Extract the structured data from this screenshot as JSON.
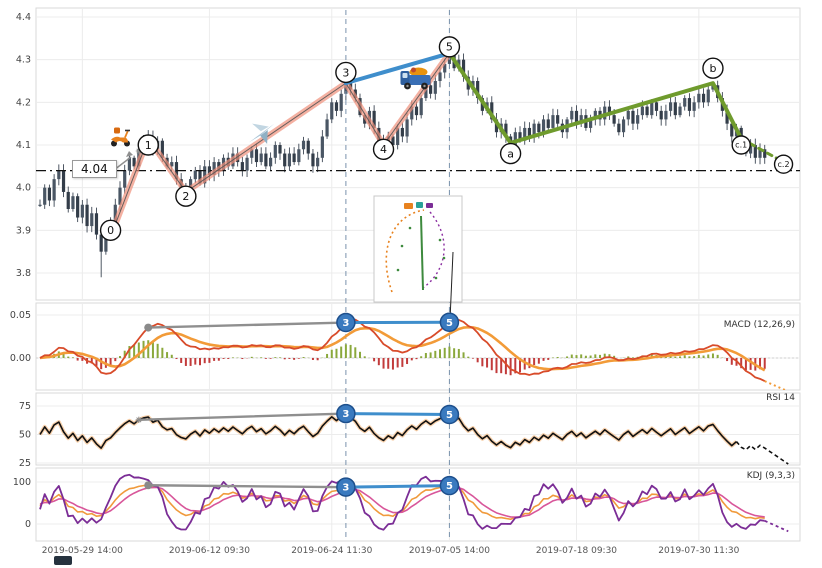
{
  "chart_data": {
    "type": "candlestick",
    "title": "",
    "x_ticks": {
      "labels": [
        "2019-05-29 14:00",
        "2019-06-12 09:30",
        "2019-06-24 11:30",
        "2019-07-05 14:00",
        "2019-07-18 09:30",
        "2019-07-30 11:30"
      ],
      "bar_indices": [
        9,
        36,
        62,
        87,
        114,
        140
      ]
    },
    "price_axis": {
      "tick_labels": [
        "4.4",
        "4.3",
        "4.2",
        "4.1",
        "4.0",
        "3.9",
        "3.8"
      ],
      "tick_values": [
        4.4,
        4.3,
        4.2,
        4.1,
        4.0,
        3.9,
        3.8
      ]
    },
    "series": {
      "bar_count": 155,
      "closes": [
        3.96,
        4.0,
        3.97,
        4.02,
        4.04,
        3.99,
        3.95,
        3.98,
        3.93,
        3.96,
        3.91,
        3.94,
        3.89,
        3.85,
        3.9,
        3.92,
        3.96,
        4.0,
        4.04,
        4.07,
        4.05,
        4.09,
        4.11,
        4.12,
        4.09,
        4.11,
        4.07,
        4.05,
        4.06,
        4.02,
        4.0,
        3.99,
        4.02,
        4.04,
        4.01,
        4.05,
        4.03,
        4.06,
        4.04,
        4.07,
        4.05,
        4.08,
        4.06,
        4.04,
        4.07,
        4.09,
        4.06,
        4.08,
        4.05,
        4.07,
        4.1,
        4.08,
        4.05,
        4.08,
        4.06,
        4.09,
        4.11,
        4.08,
        4.05,
        4.07,
        4.12,
        4.16,
        4.2,
        4.18,
        4.22,
        4.25,
        4.23,
        4.21,
        4.17,
        4.15,
        4.18,
        4.14,
        4.11,
        4.09,
        4.12,
        4.1,
        4.14,
        4.12,
        4.16,
        4.19,
        4.17,
        4.21,
        4.24,
        4.22,
        4.25,
        4.27,
        4.29,
        4.31,
        4.28,
        4.3,
        4.26,
        4.23,
        4.25,
        4.21,
        4.18,
        4.2,
        4.16,
        4.13,
        4.15,
        4.12,
        4.1,
        4.13,
        4.11,
        4.14,
        4.12,
        4.15,
        4.13,
        4.16,
        4.14,
        4.17,
        4.15,
        4.13,
        4.16,
        4.18,
        4.15,
        4.17,
        4.14,
        4.16,
        4.18,
        4.16,
        4.19,
        4.17,
        4.15,
        4.13,
        4.16,
        4.18,
        4.15,
        4.17,
        4.19,
        4.17,
        4.2,
        4.18,
        4.16,
        4.18,
        4.2,
        4.17,
        4.19,
        4.21,
        4.18,
        4.2,
        4.22,
        4.2,
        4.23,
        4.24,
        4.21,
        4.18,
        4.15,
        4.12,
        4.14,
        4.1,
        4.08,
        4.1,
        4.07,
        4.09,
        4.07
      ],
      "wick_events": [
        {
          "index": 13,
          "low": 3.79
        }
      ]
    },
    "panels": {
      "macd": {
        "label": "MACD (12,26,9)",
        "params": [
          12,
          26,
          9
        ],
        "tick_labels": [
          "0.05",
          "0.00"
        ],
        "tick_values": [
          0.05,
          0
        ]
      },
      "rsi": {
        "label": "RSI 14",
        "period": 14,
        "tick_labels": [
          "75",
          "50",
          "25"
        ],
        "tick_values": [
          75,
          50,
          25
        ]
      },
      "kdj": {
        "label": "KDJ (9,3,3)",
        "params": [
          9,
          3,
          3
        ],
        "tick_labels": [
          "100",
          "0"
        ],
        "tick_values": [
          100,
          0
        ]
      }
    },
    "annotations": {
      "price_flag": {
        "text": "4.04",
        "value": 4.04
      },
      "hline": 4.04,
      "vline_bars": [
        65,
        87
      ],
      "waves": [
        {
          "label": "0",
          "bar": 15,
          "price": 3.9
        },
        {
          "label": "1",
          "bar": 23,
          "price": 4.1
        },
        {
          "label": "2",
          "bar": 31,
          "price": 3.98
        },
        {
          "label": "3",
          "bar": 65,
          "price": 4.27
        },
        {
          "label": "4",
          "bar": 73,
          "price": 4.09
        },
        {
          "label": "5",
          "bar": 87,
          "price": 4.33
        },
        {
          "label": "a",
          "bar": 100,
          "price": 4.08
        },
        {
          "label": "b",
          "bar": 143,
          "price": 4.28
        },
        {
          "label": "c.1",
          "bar": 149,
          "price": 4.1
        },
        {
          "label": "c.2",
          "bar": 158,
          "price": 4.055
        }
      ],
      "impulse_path": [
        [
          15,
          3.885
        ],
        [
          23,
          4.115
        ],
        [
          31,
          3.99
        ],
        [
          65,
          4.245
        ],
        [
          73,
          4.1
        ],
        [
          87,
          4.315
        ]
      ],
      "blue_path": [
        [
          65,
          4.245
        ],
        [
          87,
          4.315
        ]
      ],
      "green_path": [
        [
          87,
          4.315
        ],
        [
          100,
          4.105
        ],
        [
          143,
          4.245
        ],
        [
          149,
          4.115
        ]
      ],
      "green_dashed_path": [
        [
          149,
          4.115
        ],
        [
          158,
          4.06
        ]
      ],
      "icons": [
        {
          "name": "scooter-icon",
          "bar": 17,
          "price": 4.12
        },
        {
          "name": "plane-icon",
          "bar": 47,
          "price": 4.13
        },
        {
          "name": "truck-icon",
          "bar": 80,
          "price": 4.25
        }
      ],
      "indicator_markers": [
        {
          "panel": "macd",
          "label": "3",
          "bar": 65
        },
        {
          "panel": "macd",
          "label": "5",
          "bar": 87
        },
        {
          "panel": "rsi",
          "label": "3",
          "bar": 65
        },
        {
          "panel": "rsi",
          "label": "5",
          "bar": 87
        },
        {
          "panel": "kdj",
          "label": "3",
          "bar": 65
        },
        {
          "panel": "kdj",
          "label": "5",
          "bar": 87
        }
      ],
      "connectors": [
        {
          "panel": "macd",
          "color": "gray",
          "from": 23,
          "to": 65,
          "dot": true
        },
        {
          "panel": "macd",
          "color": "blue",
          "from": 65,
          "to": 87
        },
        {
          "panel": "rsi",
          "color": "gray",
          "from": 21,
          "to": 65,
          "star": true
        },
        {
          "panel": "rsi",
          "color": "blue",
          "from": 65,
          "to": 87
        },
        {
          "panel": "kdj",
          "color": "gray",
          "from": 23,
          "to": 65,
          "dot": true
        },
        {
          "panel": "kdj",
          "color": "blue",
          "from": 65,
          "to": 87
        }
      ]
    }
  },
  "colors": {
    "candle": "#3c4653",
    "candle_up": "#4a5664",
    "candle_down": "#333d49",
    "impulse": "#f0907a",
    "blue": "#3f8ecc",
    "green": "#6f9b2d",
    "macd_dif": "#d84b2a",
    "macd_dea": "#f29b38",
    "macd_hist_pos": "#8aa83c",
    "macd_hist_neg": "#c23b3b",
    "rsi_line": "#111111",
    "rsi_glow": "#f5b97e",
    "kdj_k": "#f09a3c",
    "kdj_d": "#d8569a",
    "kdj_j": "#7b2d96",
    "marker_fill": "#3a7abf",
    "marker_stroke": "#1d4f8c",
    "gray": "#8f8f8f",
    "vline": "#7a93ad",
    "grid": "#ececec",
    "panel_border": "#d9d9d9"
  }
}
